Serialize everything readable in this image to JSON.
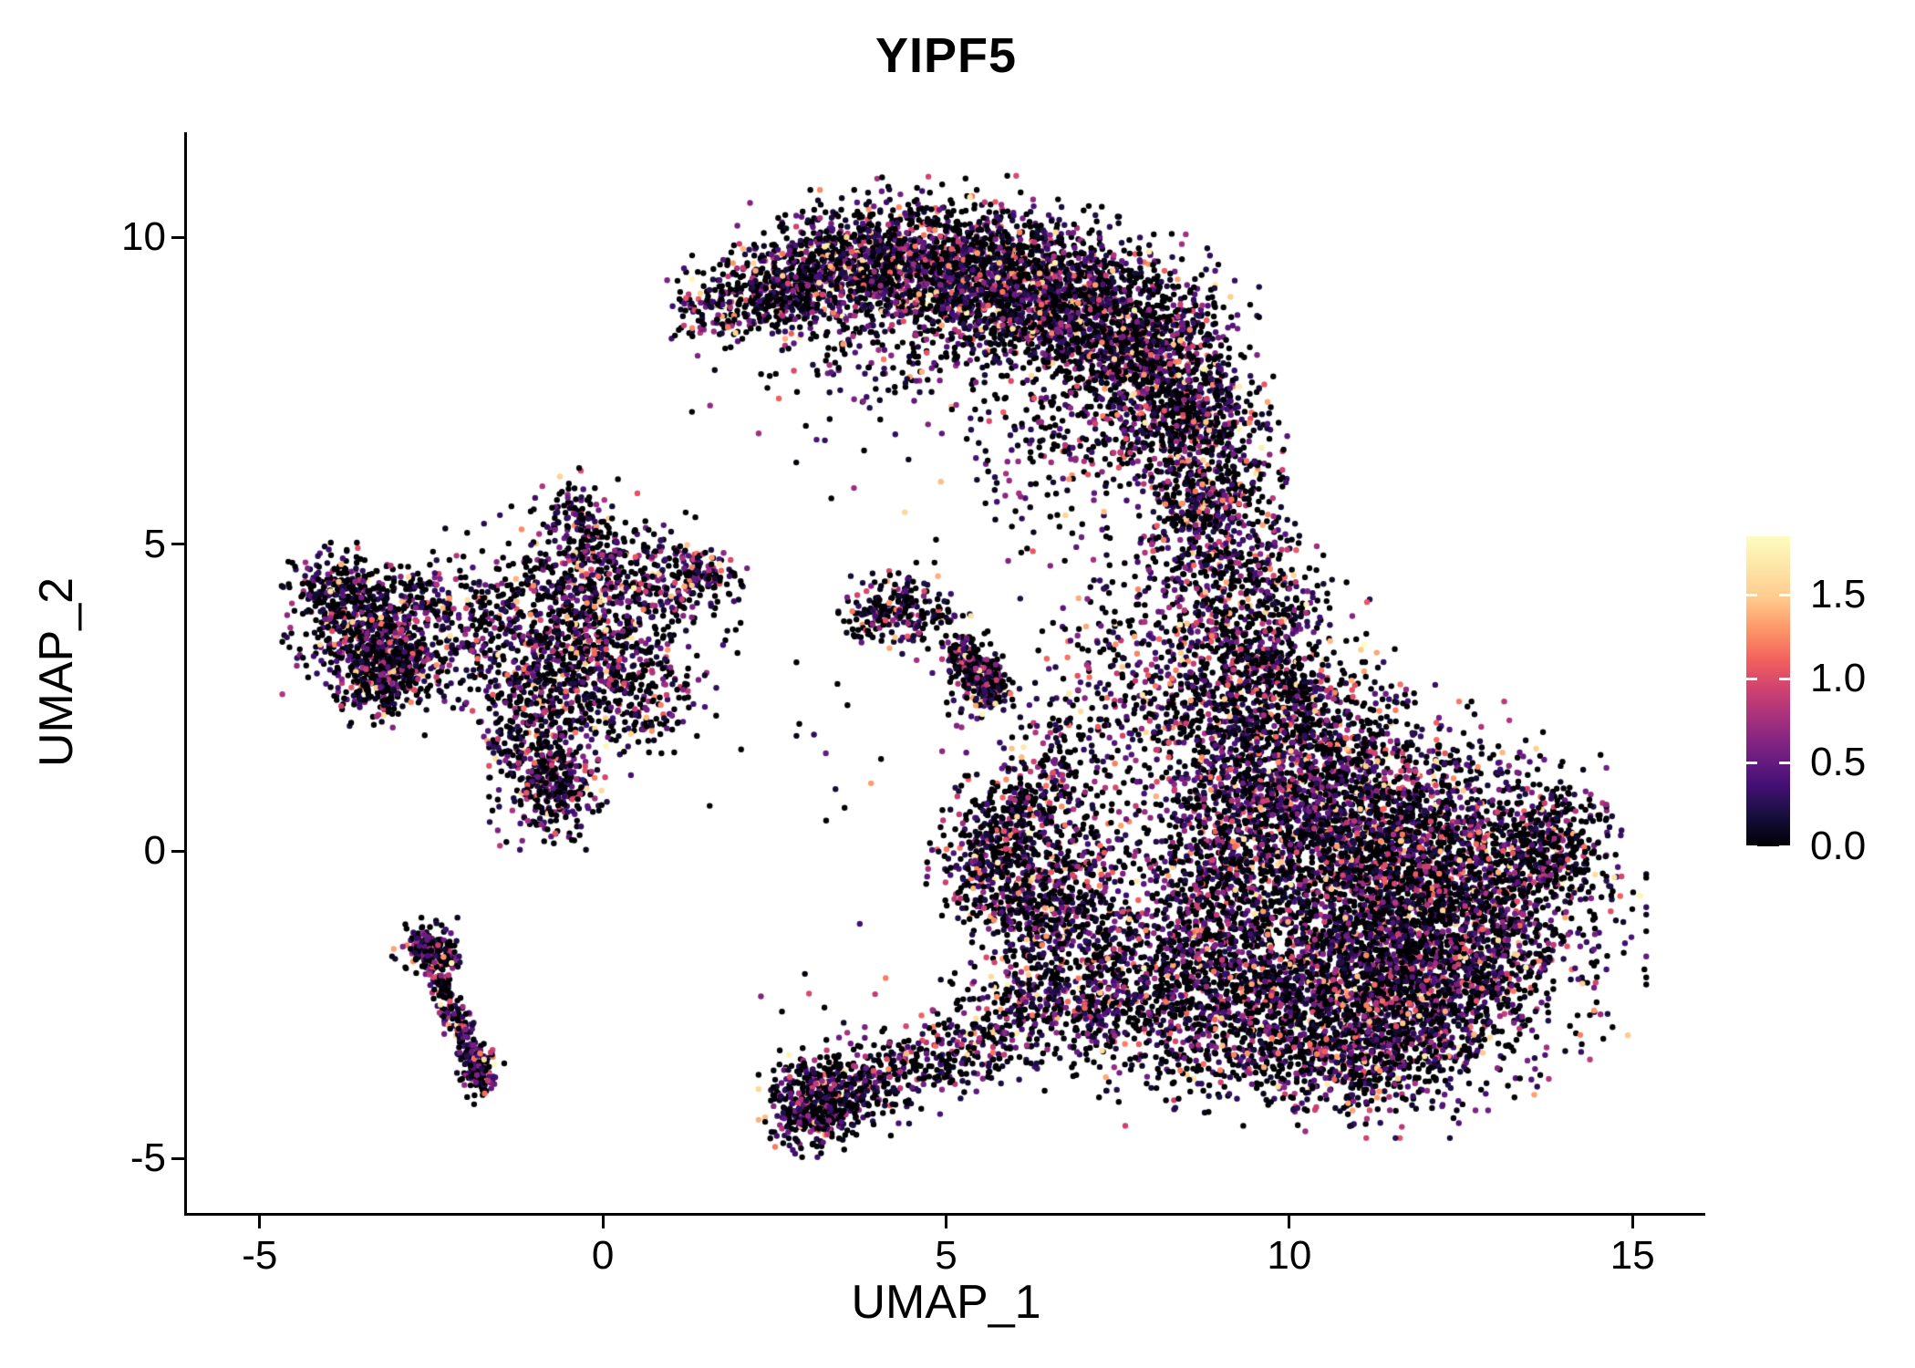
{
  "chart_data": {
    "type": "scatter",
    "title": "YIPF5",
    "xlabel": "UMAP_1",
    "ylabel": "UMAP_2",
    "xlim": [
      -6.06,
      16.06
    ],
    "ylim": [
      -5.89,
      11.71
    ],
    "x_ticks": [
      -5,
      0,
      5,
      10,
      15
    ],
    "y_ticks": [
      -5,
      0,
      5,
      10
    ],
    "grid": false,
    "legend_position": "right",
    "point_radius_px": 3.2,
    "seed": 123457,
    "expression": {
      "zero_fraction": 0.42,
      "exp_mean": 0.55,
      "max": 1.85
    },
    "colormap": {
      "name": "magma",
      "stops": [
        {
          "t": 0.0,
          "c": "#000004"
        },
        {
          "t": 0.1,
          "c": "#180f3e"
        },
        {
          "t": 0.2,
          "c": "#451077"
        },
        {
          "t": 0.3,
          "c": "#721f81"
        },
        {
          "t": 0.4,
          "c": "#9f2f7f"
        },
        {
          "t": 0.5,
          "c": "#cd4071"
        },
        {
          "t": 0.6,
          "c": "#f1605d"
        },
        {
          "t": 0.7,
          "c": "#fd9668"
        },
        {
          "t": 0.8,
          "c": "#feca8d"
        },
        {
          "t": 0.9,
          "c": "#fde5a7"
        },
        {
          "t": 1.0,
          "c": "#fcfdbf"
        }
      ]
    },
    "legend": {
      "domain": [
        0,
        1.85
      ],
      "ticks": [
        {
          "value": 0.0,
          "label": "0.0"
        },
        {
          "value": 0.5,
          "label": "0.5"
        },
        {
          "value": 1.0,
          "label": "1.0"
        },
        {
          "value": 1.5,
          "label": "1.5"
        }
      ]
    },
    "clusters": [
      {
        "shape": "blob",
        "x": 1.7,
        "y": 8.85,
        "sx": 0.35,
        "sy": 0.3,
        "n": 150
      },
      {
        "shape": "blob",
        "x": 2.6,
        "y": 9.2,
        "sx": 0.5,
        "sy": 0.4,
        "n": 350
      },
      {
        "shape": "blob",
        "x": 3.6,
        "y": 9.6,
        "sx": 0.6,
        "sy": 0.45,
        "n": 550
      },
      {
        "shape": "blob",
        "x": 4.8,
        "y": 9.7,
        "sx": 0.7,
        "sy": 0.5,
        "n": 700
      },
      {
        "shape": "blob",
        "x": 6.0,
        "y": 9.3,
        "sx": 0.7,
        "sy": 0.55,
        "n": 800
      },
      {
        "shape": "blob",
        "x": 7.1,
        "y": 8.8,
        "sx": 0.7,
        "sy": 0.6,
        "n": 850
      },
      {
        "shape": "blob",
        "x": 8.0,
        "y": 8.0,
        "sx": 0.6,
        "sy": 0.7,
        "n": 750
      },
      {
        "shape": "blob",
        "x": 8.6,
        "y": 6.9,
        "sx": 0.5,
        "sy": 0.7,
        "n": 550
      },
      {
        "shape": "blob",
        "x": 8.8,
        "y": 5.6,
        "sx": 0.45,
        "sy": 0.6,
        "n": 280
      },
      {
        "shape": "blob",
        "x": 6.6,
        "y": 7.0,
        "sx": 0.9,
        "sy": 0.7,
        "n": 180
      },
      {
        "shape": "blob",
        "x": 3.9,
        "y": 8.4,
        "sx": 0.7,
        "sy": 0.5,
        "n": 120
      },
      {
        "shape": "blob",
        "x": 5.2,
        "y": 8.6,
        "sx": 0.8,
        "sy": 0.6,
        "n": 250
      },
      {
        "shape": "blob",
        "x": 9.1,
        "y": 4.9,
        "sx": 0.5,
        "sy": 0.8,
        "n": 260
      },
      {
        "shape": "blob",
        "x": 9.4,
        "y": 3.6,
        "sx": 0.55,
        "sy": 0.8,
        "n": 450
      },
      {
        "shape": "blob",
        "x": 7.9,
        "y": 3.3,
        "sx": 0.7,
        "sy": 0.9,
        "n": 200
      },
      {
        "shape": "blob",
        "x": 8.4,
        "y": 2.2,
        "sx": 0.6,
        "sy": 0.8,
        "n": 250
      },
      {
        "shape": "blob",
        "x": 9.9,
        "y": 2.3,
        "sx": 0.7,
        "sy": 0.8,
        "n": 650
      },
      {
        "shape": "blob",
        "x": 10.4,
        "y": 1.0,
        "sx": 0.9,
        "sy": 0.8,
        "n": 900
      },
      {
        "shape": "blob",
        "x": 9.2,
        "y": 0.4,
        "sx": 0.6,
        "sy": 0.8,
        "n": 450
      },
      {
        "shape": "blob",
        "x": 11.5,
        "y": 0.1,
        "sx": 1.2,
        "sy": 0.9,
        "n": 1500
      },
      {
        "shape": "blob",
        "x": 12.6,
        "y": -0.9,
        "sx": 1.0,
        "sy": 0.9,
        "n": 1200
      },
      {
        "shape": "blob",
        "x": 10.9,
        "y": -1.7,
        "sx": 1.0,
        "sy": 0.8,
        "n": 1100
      },
      {
        "shape": "blob",
        "x": 12.1,
        "y": -2.4,
        "sx": 0.9,
        "sy": 0.7,
        "n": 800
      },
      {
        "shape": "blob",
        "x": 10.4,
        "y": -2.9,
        "sx": 0.8,
        "sy": 0.6,
        "n": 550
      },
      {
        "shape": "blob",
        "x": 11.3,
        "y": -3.5,
        "sx": 0.7,
        "sy": 0.45,
        "n": 280
      },
      {
        "shape": "blob",
        "x": 13.8,
        "y": 0.1,
        "sx": 0.4,
        "sy": 0.5,
        "n": 280
      },
      {
        "shape": "blob",
        "x": 8.9,
        "y": -0.9,
        "sx": 0.6,
        "sy": 0.8,
        "n": 420
      },
      {
        "shape": "blob",
        "x": 8.3,
        "y": -1.9,
        "sx": 0.55,
        "sy": 0.6,
        "n": 280
      },
      {
        "shape": "blob",
        "x": 9.4,
        "y": -2.6,
        "sx": 0.6,
        "sy": 0.55,
        "n": 300
      },
      {
        "shape": "blob",
        "x": 8.6,
        "y": -3.3,
        "sx": 0.6,
        "sy": 0.45,
        "n": 140
      },
      {
        "shape": "blob",
        "x": 5.75,
        "y": -0.2,
        "sx": 0.4,
        "sy": 0.55,
        "n": 450
      },
      {
        "shape": "blob",
        "x": 6.15,
        "y": 0.7,
        "sx": 0.4,
        "sy": 0.45,
        "n": 220
      },
      {
        "shape": "blob",
        "x": 6.4,
        "y": -1.1,
        "sx": 0.5,
        "sy": 0.5,
        "n": 260
      },
      {
        "shape": "blob",
        "x": 6.9,
        "y": 1.8,
        "sx": 0.45,
        "sy": 0.7,
        "n": 140
      },
      {
        "shape": "blob",
        "x": 7.3,
        "y": -1.7,
        "sx": 0.6,
        "sy": 0.7,
        "n": 220
      },
      {
        "shape": "blob",
        "x": 7.0,
        "y": -0.3,
        "sx": 0.5,
        "sy": 0.7,
        "n": 250
      },
      {
        "shape": "blob",
        "x": 3.1,
        "y": -4.15,
        "sx": 0.32,
        "sy": 0.32,
        "n": 420
      },
      {
        "shape": "blob",
        "x": 3.6,
        "y": -3.85,
        "sx": 0.4,
        "sy": 0.3,
        "n": 220
      },
      {
        "shape": "blob",
        "x": 4.5,
        "y": -3.5,
        "sx": 0.5,
        "sy": 0.3,
        "n": 160
      },
      {
        "shape": "blob",
        "x": 5.5,
        "y": -3.0,
        "sx": 0.55,
        "sy": 0.35,
        "n": 170
      },
      {
        "shape": "blob",
        "x": 6.4,
        "y": -2.5,
        "sx": 0.55,
        "sy": 0.4,
        "n": 220
      },
      {
        "shape": "blob",
        "x": 7.3,
        "y": -2.6,
        "sx": 0.5,
        "sy": 0.5,
        "n": 200
      },
      {
        "shape": "blob",
        "x": -3.5,
        "y": 3.7,
        "sx": 0.45,
        "sy": 0.45,
        "n": 450
      },
      {
        "shape": "blob",
        "x": -3.05,
        "y": 3.05,
        "sx": 0.35,
        "sy": 0.3,
        "n": 300
      },
      {
        "shape": "blob",
        "x": -3.9,
        "y": 4.3,
        "sx": 0.3,
        "sy": 0.28,
        "n": 180
      },
      {
        "shape": "blob",
        "x": -2.6,
        "y": 4.1,
        "sx": 0.4,
        "sy": 0.3,
        "n": 120
      },
      {
        "shape": "blob",
        "x": -3.3,
        "y": 2.6,
        "sx": 0.3,
        "sy": 0.25,
        "n": 120
      },
      {
        "shape": "blob",
        "x": -2.1,
        "y": 3.4,
        "sx": 0.4,
        "sy": 0.45,
        "n": 70
      },
      {
        "shape": "blob",
        "x": -0.45,
        "y": 3.2,
        "sx": 0.7,
        "sy": 0.65,
        "n": 500
      },
      {
        "shape": "blob",
        "x": -0.2,
        "y": 4.4,
        "sx": 0.5,
        "sy": 0.55,
        "n": 260
      },
      {
        "shape": "blob",
        "x": -0.4,
        "y": 5.4,
        "sx": 0.28,
        "sy": 0.35,
        "n": 110
      },
      {
        "shape": "blob",
        "x": 0.8,
        "y": 4.4,
        "sx": 0.5,
        "sy": 0.4,
        "n": 200
      },
      {
        "shape": "blob",
        "x": 1.45,
        "y": 4.5,
        "sx": 0.28,
        "sy": 0.22,
        "n": 90
      },
      {
        "shape": "blob",
        "x": 0.35,
        "y": 2.7,
        "sx": 0.5,
        "sy": 0.5,
        "n": 240
      },
      {
        "shape": "blob",
        "x": -1.0,
        "y": 2.3,
        "sx": 0.4,
        "sy": 0.5,
        "n": 200
      },
      {
        "shape": "blob",
        "x": -0.8,
        "y": 1.15,
        "sx": 0.33,
        "sy": 0.45,
        "n": 380
      },
      {
        "shape": "blob",
        "x": -1.35,
        "y": 3.9,
        "sx": 0.45,
        "sy": 0.4,
        "n": 150
      },
      {
        "shape": "blob",
        "x": -0.3,
        "y": 3.2,
        "sx": 1.2,
        "sy": 1.1,
        "n": 150
      },
      {
        "shape": "streak",
        "x1": -2.7,
        "y1": -1.35,
        "x2": -1.7,
        "y2": -3.8,
        "w": 0.1,
        "n": 300
      },
      {
        "shape": "streak",
        "x1": -2.6,
        "y1": -1.5,
        "x2": -2.15,
        "y2": -1.8,
        "w": 0.07,
        "n": 60
      },
      {
        "shape": "blob",
        "x": -2.5,
        "y": -1.6,
        "sx": 0.22,
        "sy": 0.2,
        "n": 100
      },
      {
        "shape": "blob",
        "x": -1.8,
        "y": -3.6,
        "sx": 0.15,
        "sy": 0.2,
        "n": 80
      },
      {
        "shape": "blob",
        "x": 4.35,
        "y": 4.0,
        "sx": 0.3,
        "sy": 0.27,
        "n": 140
      },
      {
        "shape": "blob",
        "x": 3.95,
        "y": 3.8,
        "sx": 0.2,
        "sy": 0.2,
        "n": 60
      },
      {
        "shape": "blob",
        "x": 4.8,
        "y": 3.7,
        "sx": 0.35,
        "sy": 0.3,
        "n": 60
      },
      {
        "shape": "streak",
        "x1": 5.2,
        "y1": 3.35,
        "x2": 5.7,
        "y2": 2.5,
        "w": 0.13,
        "n": 230
      },
      {
        "shape": "blob",
        "x": 5.45,
        "y": 2.8,
        "sx": 0.25,
        "sy": 0.3,
        "n": 120
      },
      {
        "shape": "blob",
        "x": 5.3,
        "y": 6.4,
        "sx": 1.3,
        "sy": 0.9,
        "n": 40
      },
      {
        "shape": "blob",
        "x": 2.6,
        "y": 7.4,
        "sx": 0.7,
        "sy": 0.6,
        "n": 15
      },
      {
        "shape": "blob",
        "x": 4.3,
        "y": 1.3,
        "sx": 1.2,
        "sy": 1.2,
        "n": 18
      },
      {
        "shape": "blob",
        "x": 7.1,
        "y": 5.3,
        "sx": 0.8,
        "sy": 0.9,
        "n": 55
      },
      {
        "shape": "blob",
        "x": 3.3,
        "y": -2.6,
        "sx": 0.8,
        "sy": 0.8,
        "n": 14
      }
    ]
  }
}
